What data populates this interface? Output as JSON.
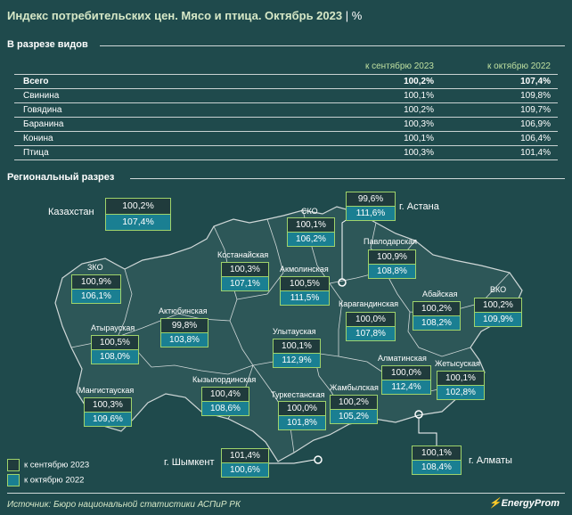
{
  "title": "Индекс потребительских цен. Мясо и птица. Октябрь 2023",
  "unit": "%",
  "types_section": "В разрезе видов",
  "columns": [
    "к сентябрю 2023",
    "к октябрю 2022"
  ],
  "rows": [
    {
      "name": "Всего",
      "sep": "100,2%",
      "oct": "107,4%"
    },
    {
      "name": "Свинина",
      "sep": "100,1%",
      "oct": "109,8%"
    },
    {
      "name": "Говядина",
      "sep": "100,2%",
      "oct": "109,7%"
    },
    {
      "name": "Баранина",
      "sep": "100,3%",
      "oct": "106,9%"
    },
    {
      "name": "Конина",
      "sep": "100,1%",
      "oct": "106,4%"
    },
    {
      "name": "Птица",
      "sep": "100,3%",
      "oct": "101,4%"
    }
  ],
  "regional_section": "Региональный разрез",
  "kazakhstan": {
    "name": "Казахстан",
    "sep": "100,2%",
    "oct": "107,4%"
  },
  "regions": [
    {
      "name": "СКО",
      "sep": "100,1%",
      "oct": "106,2%"
    },
    {
      "name": "г. Астана",
      "sep": "99,6%",
      "oct": "111,6%"
    },
    {
      "name": "Павлодарская",
      "sep": "100,9%",
      "oct": "108,8%"
    },
    {
      "name": "Костанайская",
      "sep": "100,3%",
      "oct": "107,1%"
    },
    {
      "name": "Акмолинская",
      "sep": "100,5%",
      "oct": "111,5%"
    },
    {
      "name": "ЗКО",
      "sep": "100,9%",
      "oct": "106,1%"
    },
    {
      "name": "Актюбинская",
      "sep": "99,8%",
      "oct": "103,8%"
    },
    {
      "name": "Абайская",
      "sep": "100,2%",
      "oct": "108,2%"
    },
    {
      "name": "ВКО",
      "sep": "100,2%",
      "oct": "109,9%"
    },
    {
      "name": "Карагандинская",
      "sep": "100,0%",
      "oct": "107,8%"
    },
    {
      "name": "Атырауская",
      "sep": "100,5%",
      "oct": "108,0%"
    },
    {
      "name": "Улытауская",
      "sep": "100,1%",
      "oct": "112,9%"
    },
    {
      "name": "Мангистауская",
      "sep": "100,3%",
      "oct": "109,6%"
    },
    {
      "name": "Кызылординская",
      "sep": "100,4%",
      "oct": "108,6%"
    },
    {
      "name": "Алматинская",
      "sep": "100,0%",
      "oct": "112,4%"
    },
    {
      "name": "Жетысуская",
      "sep": "100,1%",
      "oct": "102,8%"
    },
    {
      "name": "Туркестанская",
      "sep": "100,0%",
      "oct": "101,8%"
    },
    {
      "name": "Жамбылская",
      "sep": "100,2%",
      "oct": "105,2%"
    },
    {
      "name": "г. Шымкент",
      "sep": "101,4%",
      "oct": "100,6%"
    },
    {
      "name": "г. Алматы",
      "sep": "100,1%",
      "oct": "108,4%"
    }
  ],
  "legend": [
    {
      "label": "к сентябрю 2023",
      "color": "#203b3c"
    },
    {
      "label": "к октябрю 2022",
      "color": "#1a7f92"
    }
  ],
  "source": "Источник: Бюро национальной статистики АСПиР РК",
  "brand": "EnergyProm"
}
